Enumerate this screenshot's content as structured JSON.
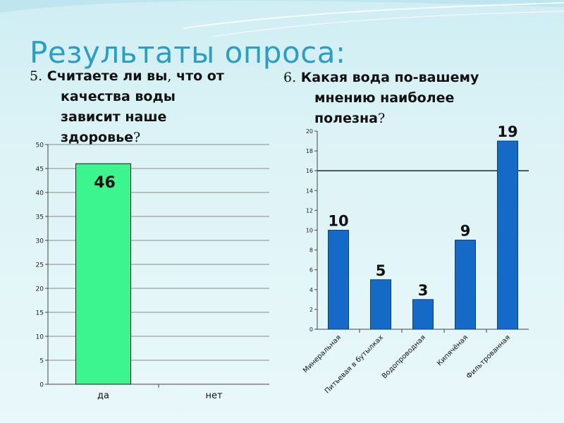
{
  "title": "Результаты опроса:",
  "question1": {
    "number": "5.",
    "lines": [
      "Считаете ли вы",
      "что от",
      "качества воды",
      "зависит наше",
      "здоровье"
    ],
    "comma": ",",
    "mark": "?"
  },
  "question2": {
    "number": "6.",
    "lines": [
      "Какая вода по-вашему",
      "мнению наиболее",
      "полезна"
    ],
    "mark": "?"
  },
  "colors": {
    "bar1": "#3df58f",
    "bar1_border": "#1a1a1a",
    "bar2": "#1569c7",
    "bar2_border": "#0c3f80",
    "title": "#2a9ec3"
  },
  "chart_data": [
    {
      "type": "bar",
      "categories": [
        "да",
        "нет"
      ],
      "values": [
        46,
        0
      ],
      "data_labels": [
        "46",
        ""
      ],
      "ylim": [
        0,
        50
      ],
      "yticks": [
        0,
        5,
        10,
        15,
        20,
        25,
        30,
        35,
        40,
        45,
        50
      ],
      "grid": true
    },
    {
      "type": "bar",
      "categories": [
        "Минеральная",
        "Питьевая в бутылках",
        "Водопроводная",
        "Кипячёная",
        "Фильтрованная"
      ],
      "values": [
        10,
        5,
        3,
        9,
        19
      ],
      "data_labels": [
        "10",
        "5",
        "3",
        "9",
        "19"
      ],
      "ylim": [
        0,
        20
      ],
      "yticks": [
        0,
        2,
        4,
        6,
        8,
        10,
        12,
        14,
        16,
        18,
        20
      ],
      "grid": false,
      "reference_line": 16
    }
  ]
}
